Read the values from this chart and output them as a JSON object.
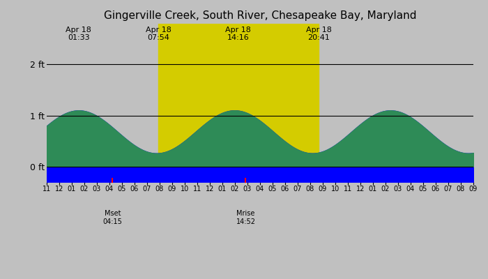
{
  "title": "Gingerville Creek, South River, Chesapeake Bay, Maryland",
  "bg_night_color": "#c0c0c0",
  "bg_day_color": "#d4cc00",
  "water_color": "#0000ff",
  "land_color": "#2e8b57",
  "tide_line_color": "#000000",
  "grid_line_color": "#000000",
  "sunrise_hour": 7.9,
  "sunset_hour": 20.683,
  "x_start_hour": -1.0,
  "x_end_hour": 33.0,
  "ylim_min": -0.3,
  "ylim_max": 2.8,
  "yticks": [
    0,
    1,
    2
  ],
  "ytick_labels": [
    "0 ft",
    "1 ft",
    "2 ft"
  ],
  "high_tides": [
    {
      "hour": 1.55,
      "height": 1.1,
      "label": "Apr 18\n01:33"
    },
    {
      "hour": 14.27,
      "height": 1.15,
      "label": "Apr 18\n14:16"
    }
  ],
  "low_tides": [
    {
      "hour": 7.9,
      "height": 0.3,
      "label": "Apr 18\n07:54"
    },
    {
      "hour": 20.683,
      "height": 0.25,
      "label": "Apr 18\n20:41"
    }
  ],
  "moonset_hour": 4.25,
  "moonset_label": "Mset\n04:15",
  "moonrise_hour": 14.867,
  "moonrise_label": "Mrise\n14:52",
  "xtick_hours": [
    -1,
    0,
    1,
    2,
    3,
    4,
    5,
    6,
    7,
    8,
    9,
    10,
    11,
    12,
    13,
    14,
    15,
    16,
    17,
    18,
    19,
    20,
    21,
    22,
    23,
    24,
    25,
    26,
    27,
    28,
    29,
    30,
    31,
    32,
    33
  ],
  "xtick_labels": [
    "11",
    "12",
    "01",
    "02",
    "03",
    "04",
    "05",
    "06",
    "07",
    "08",
    "09",
    "10",
    "11",
    "12",
    "01",
    "02",
    "03",
    "04",
    "05",
    "06",
    "07",
    "08",
    "09",
    "10",
    "11",
    "12",
    "01",
    "02",
    "03",
    "04",
    "05",
    "06",
    "07",
    "08",
    "09"
  ],
  "figsize": [
    7.0,
    4.0
  ],
  "dpi": 100
}
